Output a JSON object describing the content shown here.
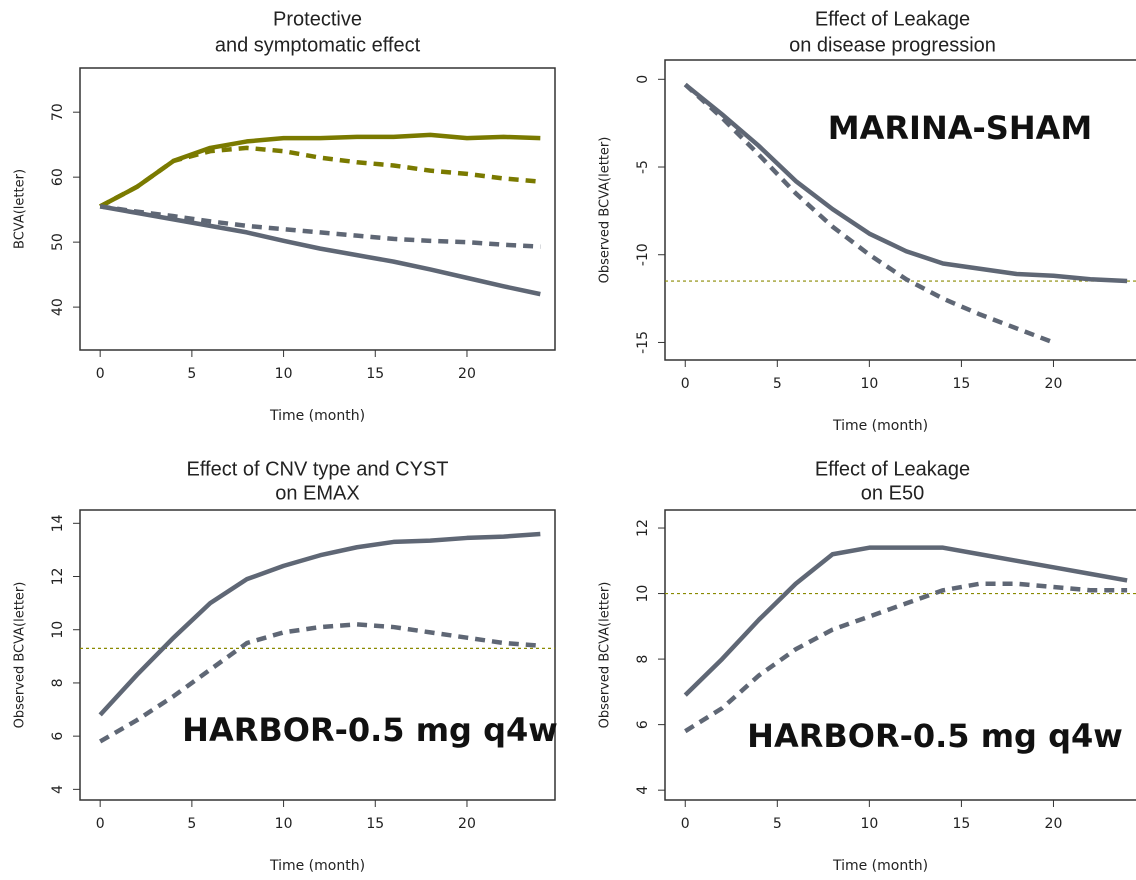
{
  "chart_data": [
    {
      "type": "line",
      "title": [
        "Protective",
        "and symptomatic effect"
      ],
      "xlabel": "Time (month)",
      "ylabel": "BCVA(letter)",
      "x": [
        0,
        2,
        4,
        6,
        8,
        10,
        12,
        14,
        16,
        18,
        20,
        22,
        24
      ],
      "xlim": [
        -1.1,
        24.8
      ],
      "ylim": [
        33.4,
        76.8
      ],
      "xticks": [
        0,
        5,
        10,
        15,
        20
      ],
      "yticks": [
        40,
        50,
        60,
        70
      ],
      "series": [
        {
          "color": "#7a7a00",
          "dashed": false,
          "values": [
            55.5,
            58.5,
            62.5,
            64.5,
            65.5,
            66,
            66,
            66.2,
            66.2,
            66.5,
            66,
            66.2,
            66
          ]
        },
        {
          "color": "#7a7a00",
          "dashed": true,
          "values": [
            55.5,
            58.5,
            62.5,
            64,
            64.5,
            64,
            63,
            62.3,
            61.8,
            61,
            60.5,
            59.8,
            59.3
          ]
        },
        {
          "color": "#5f6775",
          "dashed": false,
          "values": [
            55.5,
            54.5,
            53.5,
            52.5,
            51.5,
            50.2,
            49,
            48,
            47,
            45.8,
            44.5,
            43.2,
            42
          ]
        },
        {
          "color": "#5f6775",
          "dashed": true,
          "values": [
            55.5,
            54.7,
            54,
            53.2,
            52.5,
            52,
            51.5,
            51,
            50.5,
            50.2,
            50,
            49.6,
            49.3
          ]
        }
      ]
    },
    {
      "type": "line",
      "title": [
        "Effect of Leakage",
        "on disease progression"
      ],
      "xlabel": "Time (month)",
      "ylabel": "Observed BCVA(letter)",
      "x": [
        0,
        2,
        4,
        6,
        8,
        10,
        12,
        14,
        16,
        18,
        20,
        22,
        24
      ],
      "xlim": [
        -1.1,
        24.7
      ],
      "ylim": [
        -16,
        1.1
      ],
      "xticks": [
        0,
        5,
        10,
        15,
        20
      ],
      "yticks": [
        0,
        -5,
        -10,
        -15
      ],
      "hline": -11.5,
      "annotation": "MARINA-SHAM",
      "series": [
        {
          "color": "#5f6775",
          "dashed": false,
          "values": [
            -0.3,
            -2,
            -3.8,
            -5.8,
            -7.4,
            -8.8,
            -9.8,
            -10.5,
            -10.8,
            -11.1,
            -11.2,
            -11.4,
            -11.5
          ]
        },
        {
          "color": "#5f6775",
          "dashed": true,
          "values": [
            -0.3,
            -2.2,
            -4.3,
            -6.5,
            -8.4,
            -10,
            -11.4,
            -12.5,
            -13.4,
            -14.2,
            -15,
            null,
            null
          ]
        }
      ]
    },
    {
      "type": "line",
      "title": [
        "Effect of CNV type and CYST",
        "on EMAX"
      ],
      "xlabel": "Time (month)",
      "ylabel": "Observed BCVA(letter)",
      "x": [
        0,
        2,
        4,
        6,
        8,
        10,
        12,
        14,
        16,
        18,
        20,
        22,
        24
      ],
      "xlim": [
        -1.1,
        24.8
      ],
      "ylim": [
        3.6,
        14.5
      ],
      "xticks": [
        0,
        5,
        10,
        15,
        20
      ],
      "yticks": [
        4,
        6,
        8,
        10,
        12,
        14
      ],
      "hline": 9.3,
      "annotation": "HARBOR-0.5 mg q4w",
      "series": [
        {
          "color": "#5f6775",
          "dashed": false,
          "values": [
            6.8,
            8.3,
            9.7,
            11,
            11.9,
            12.4,
            12.8,
            13.1,
            13.3,
            13.35,
            13.45,
            13.5,
            13.6
          ]
        },
        {
          "color": "#5f6775",
          "dashed": true,
          "values": [
            5.8,
            6.6,
            7.5,
            8.5,
            9.5,
            9.9,
            10.1,
            10.2,
            10.1,
            9.9,
            9.7,
            9.5,
            9.4
          ]
        }
      ]
    },
    {
      "type": "line",
      "title": [
        "Effect of Leakage",
        "on E50"
      ],
      "xlabel": "Time (month)",
      "ylabel": "Observed BCVA(letter)",
      "x": [
        0,
        2,
        4,
        6,
        8,
        10,
        12,
        14,
        16,
        18,
        20,
        22,
        24
      ],
      "xlim": [
        -1.1,
        24.7
      ],
      "ylim": [
        3.7,
        12.55
      ],
      "xticks": [
        0,
        5,
        10,
        15,
        20
      ],
      "yticks": [
        4,
        6,
        8,
        10,
        12
      ],
      "hline": 10,
      "annotation": "HARBOR-0.5 mg q4w",
      "series": [
        {
          "color": "#5f6775",
          "dashed": false,
          "values": [
            6.9,
            8,
            9.2,
            10.3,
            11.2,
            11.4,
            11.4,
            11.4,
            11.2,
            11,
            10.8,
            10.6,
            10.4
          ]
        },
        {
          "color": "#5f6775",
          "dashed": true,
          "values": [
            5.8,
            6.5,
            7.5,
            8.3,
            8.9,
            9.3,
            9.7,
            10.1,
            10.3,
            10.3,
            10.2,
            10.1,
            10.1
          ]
        }
      ]
    }
  ]
}
